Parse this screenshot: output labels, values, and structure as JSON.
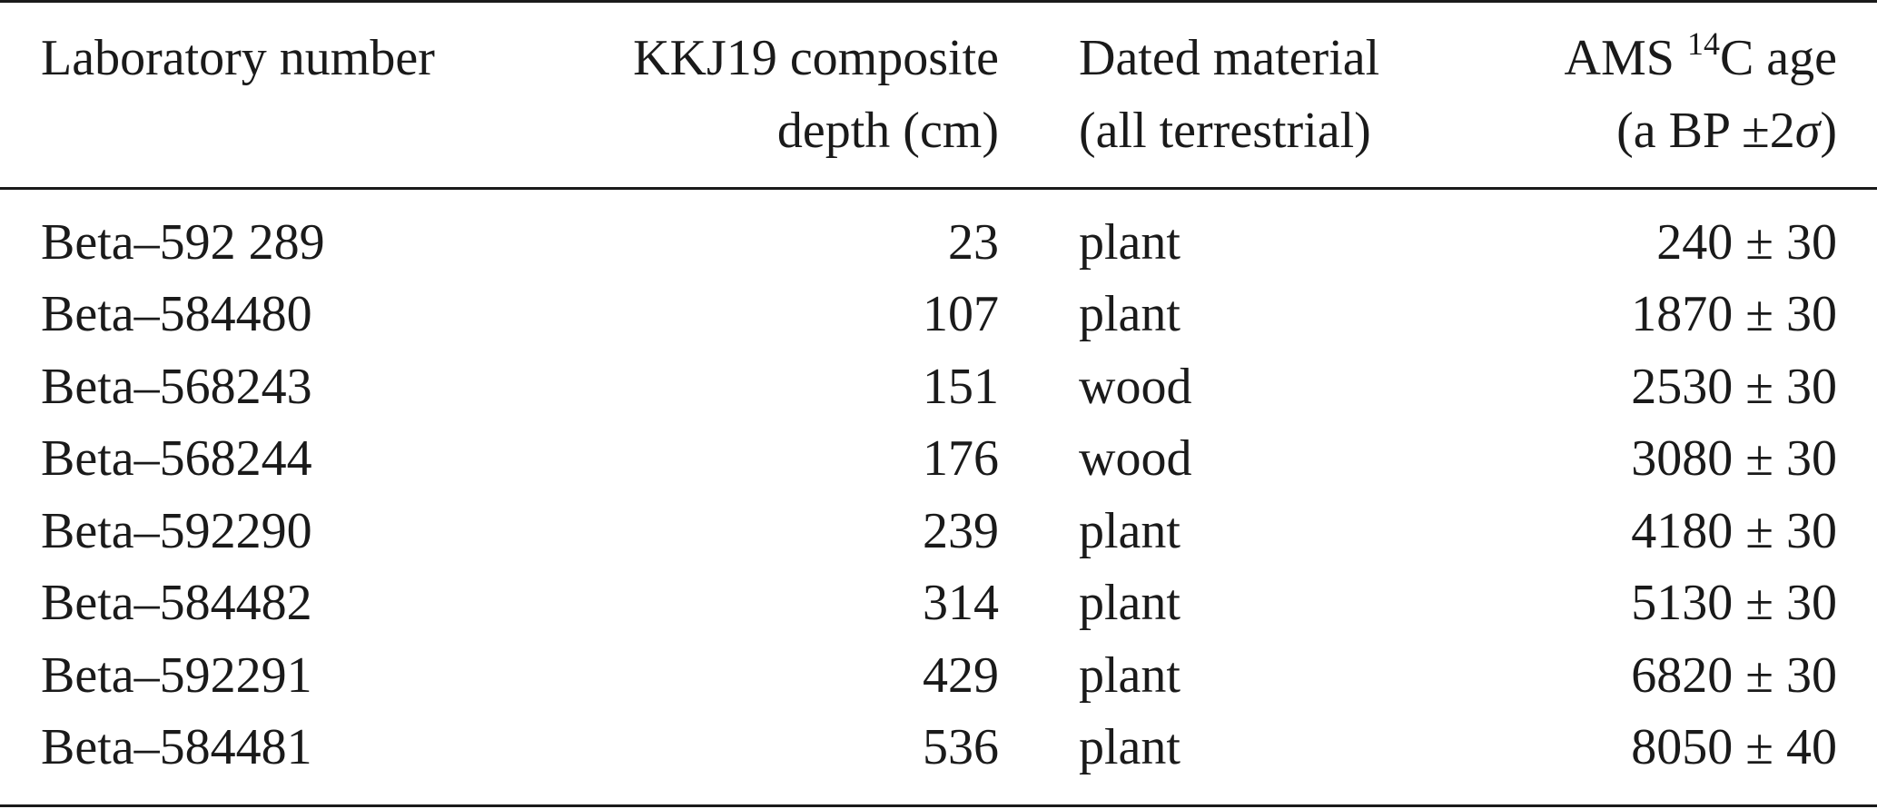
{
  "table": {
    "headers": {
      "lab_number": {
        "line1": "Laboratory number"
      },
      "depth": {
        "line1": "KKJ19 composite",
        "line2": "depth (cm)"
      },
      "material": {
        "line1": "Dated material",
        "line2": "(all terrestrial)"
      },
      "age": {
        "line1_prefix": "AMS ",
        "line1_sup": "14",
        "line1_suffix": "C age",
        "line2_prefix": "(a BP ±2",
        "line2_sigma": "σ",
        "line2_suffix": ")"
      }
    },
    "rows": [
      {
        "lab": "Beta–592 289",
        "depth": "23",
        "material": "plant",
        "age": "240 ± 30"
      },
      {
        "lab": "Beta–584480",
        "depth": "107",
        "material": "plant",
        "age": "1870 ± 30"
      },
      {
        "lab": "Beta–568243",
        "depth": "151",
        "material": "wood",
        "age": "2530 ± 30"
      },
      {
        "lab": "Beta–568244",
        "depth": "176",
        "material": "wood",
        "age": "3080 ± 30"
      },
      {
        "lab": "Beta–592290",
        "depth": "239",
        "material": "plant",
        "age": "4180 ± 30"
      },
      {
        "lab": "Beta–584482",
        "depth": "314",
        "material": "plant",
        "age": "5130 ± 30"
      },
      {
        "lab": "Beta–592291",
        "depth": "429",
        "material": "plant",
        "age": "6820 ± 30"
      },
      {
        "lab": "Beta–584481",
        "depth": "536",
        "material": "plant",
        "age": "8050 ± 40"
      }
    ]
  }
}
